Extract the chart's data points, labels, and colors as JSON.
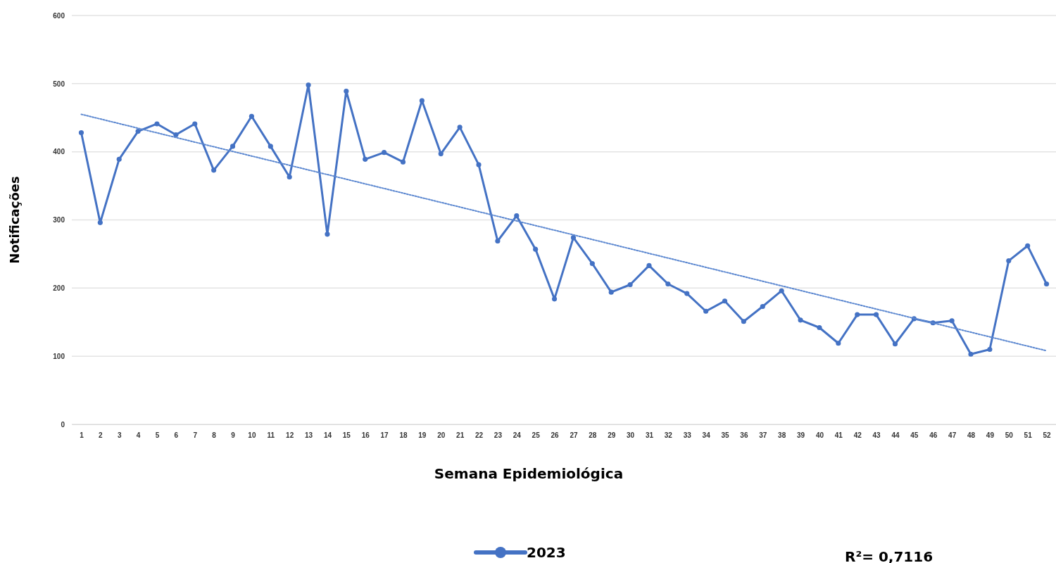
{
  "chart_data": {
    "type": "line",
    "xlabel": "Semana Epidemiológica",
    "ylabel": "Notificações",
    "x": [
      1,
      2,
      3,
      4,
      5,
      6,
      7,
      8,
      9,
      10,
      11,
      12,
      13,
      14,
      15,
      16,
      17,
      18,
      19,
      20,
      21,
      22,
      23,
      24,
      25,
      26,
      27,
      28,
      29,
      30,
      31,
      32,
      33,
      34,
      35,
      36,
      37,
      38,
      39,
      40,
      41,
      42,
      43,
      44,
      45,
      46,
      47,
      48,
      49,
      50,
      51,
      52
    ],
    "xlim": [
      0.5,
      52.5
    ],
    "xticks": [
      1,
      2,
      3,
      4,
      5,
      6,
      7,
      8,
      9,
      10,
      11,
      12,
      13,
      14,
      15,
      16,
      17,
      18,
      19,
      20,
      21,
      22,
      23,
      24,
      25,
      26,
      27,
      28,
      29,
      30,
      31,
      32,
      33,
      34,
      35,
      36,
      37,
      38,
      39,
      40,
      41,
      42,
      43,
      44,
      45,
      46,
      47,
      48,
      49,
      50,
      51,
      52
    ],
    "ylim": [
      0,
      600
    ],
    "yticks": [
      0,
      100,
      200,
      300,
      400,
      500,
      600
    ],
    "grid": "y",
    "legend": "bottom",
    "marker": "circle",
    "series": [
      {
        "name": "2023",
        "color": "#4472c4",
        "values": [
          428,
          296,
          389,
          430,
          441,
          425,
          441,
          373,
          408,
          452,
          408,
          363,
          498,
          279,
          489,
          389,
          399,
          385,
          475,
          397,
          436,
          381,
          269,
          306,
          257,
          184,
          274,
          236,
          194,
          205,
          233,
          206,
          192,
          166,
          181,
          151,
          173,
          196,
          153,
          142,
          119,
          161,
          161,
          118,
          155,
          149,
          152,
          103,
          110,
          240,
          262,
          206
        ]
      },
      {
        "type": "line",
        "color": "#5b87d0",
        "x": [
          1,
          52
        ],
        "values": [
          455,
          108
        ],
        "marker": "none",
        "line_style": "dotted"
      }
    ],
    "annotations": [
      "R²= 0,7116"
    ]
  }
}
